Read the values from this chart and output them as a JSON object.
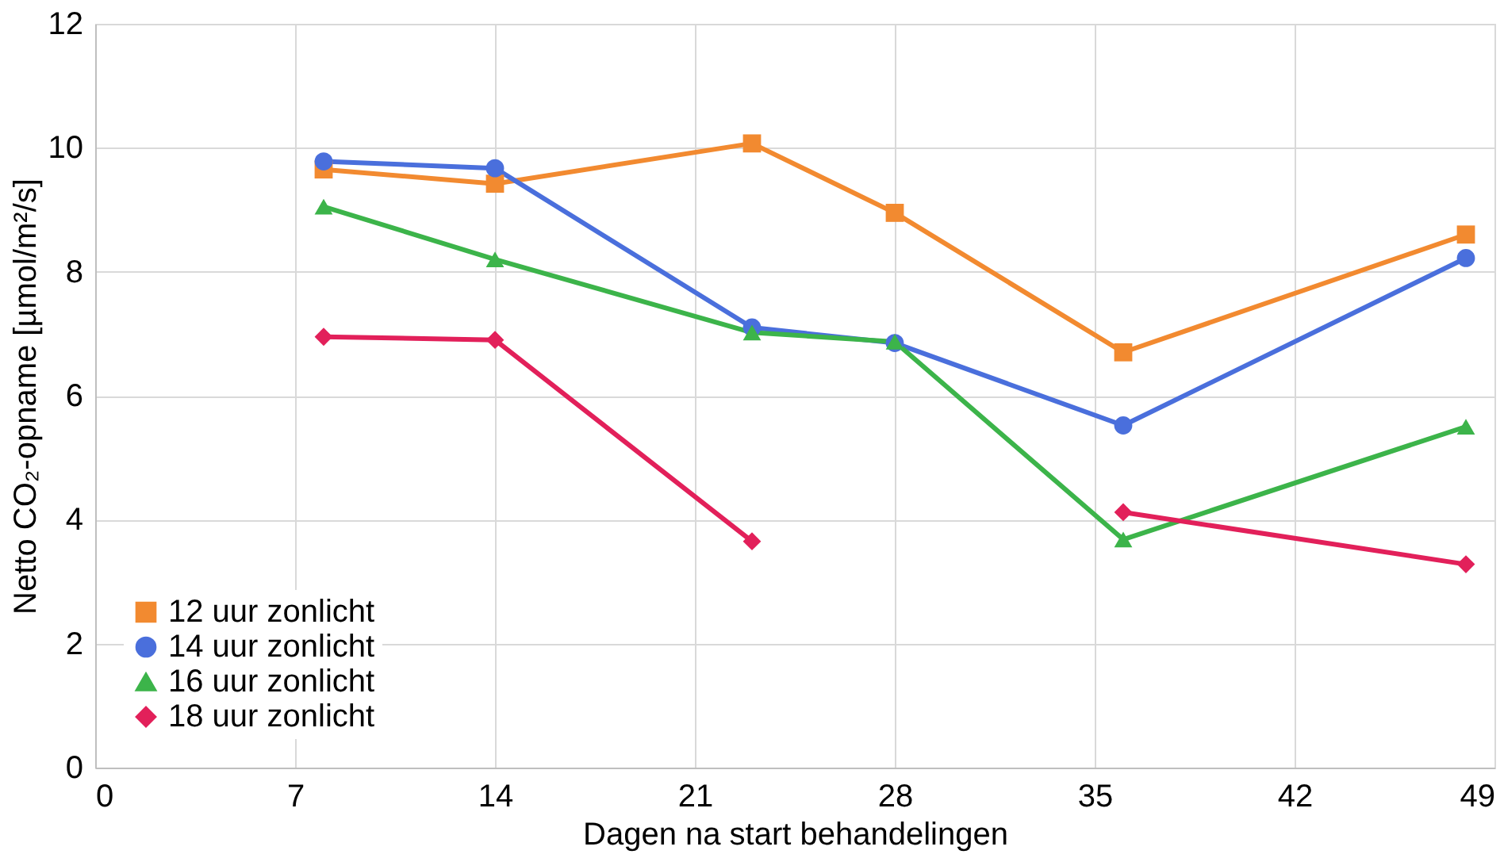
{
  "chart_data": {
    "type": "line",
    "xlabel": "Dagen na start behandelingen",
    "ylabel": "Netto CO₂-opname [µmol/m²/s]",
    "x": [
      8,
      14,
      23,
      28,
      36,
      48
    ],
    "series": [
      {
        "name": "12 uur zonlicht",
        "color": "#f28a30",
        "marker": "square",
        "values": [
          9.65,
          9.42,
          10.07,
          8.95,
          6.7,
          8.6
        ]
      },
      {
        "name": "14 uur zonlicht",
        "color": "#4a6fdc",
        "marker": "circle",
        "values": [
          9.78,
          9.67,
          7.1,
          6.85,
          5.52,
          8.22
        ]
      },
      {
        "name": "16 uur zonlicht",
        "color": "#3cb44a",
        "marker": "triangle",
        "values": [
          9.05,
          8.2,
          7.02,
          6.87,
          3.68,
          5.5
        ]
      },
      {
        "name": "18 uur zonlicht",
        "color": "#e2205a",
        "marker": "diamond",
        "values": [
          6.95,
          6.9,
          3.65,
          null,
          4.12,
          3.28
        ]
      }
    ],
    "xlim": [
      0,
      49
    ],
    "xticks": [
      0,
      7,
      14,
      21,
      28,
      35,
      42,
      49
    ],
    "ylim": [
      0,
      12
    ],
    "yticks": [
      0,
      2,
      4,
      6,
      8,
      10,
      12
    ],
    "grid": true,
    "legend": "bottom left",
    "line_style": "solid"
  }
}
